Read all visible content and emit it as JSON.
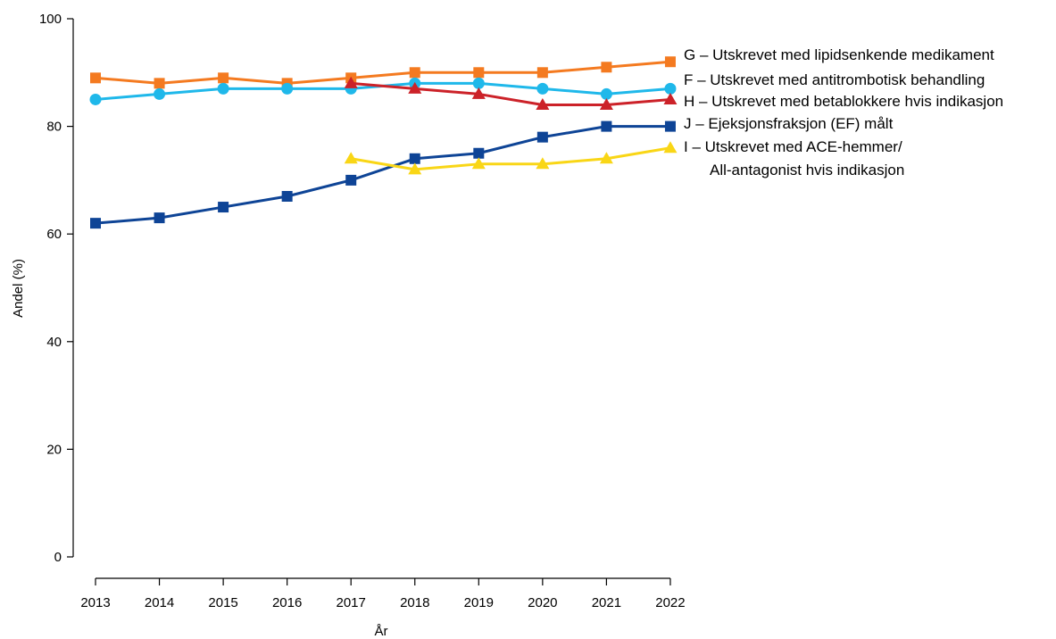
{
  "chart_data": {
    "type": "line",
    "title": "",
    "xlabel": "År",
    "ylabel": "Andel (%)",
    "ylim": [
      0,
      100
    ],
    "yticks": [
      0,
      20,
      40,
      60,
      80,
      100
    ],
    "x": [
      "2013",
      "2014",
      "2015",
      "2016",
      "2017",
      "2018",
      "2019",
      "2020",
      "2021",
      "2022"
    ],
    "grid": false,
    "legend_placement": "right",
    "series": [
      {
        "key": "G",
        "name": "G – Utskrevet med lipidsenkende medikament",
        "color": "#F47A20",
        "marker": "square",
        "values": [
          89,
          88,
          89,
          88,
          89,
          90,
          90,
          90,
          91,
          92
        ]
      },
      {
        "key": "F",
        "name": "F – Utskrevet med antitrombotisk behandling",
        "color": "#1FB8EA",
        "marker": "circle",
        "values": [
          85,
          86,
          87,
          87,
          87,
          88,
          88,
          87,
          86,
          87
        ]
      },
      {
        "key": "H",
        "name": "H – Utskrevet med betablokkere hvis indikasjon",
        "color": "#CC2229",
        "marker": "triangle",
        "values": [
          null,
          null,
          null,
          null,
          88,
          87,
          86,
          84,
          84,
          85
        ]
      },
      {
        "key": "J",
        "name": "J – Ejeksjonsfraksjon (EF) målt",
        "color": "#0E4496",
        "marker": "square",
        "values": [
          62,
          63,
          65,
          67,
          70,
          74,
          75,
          78,
          80,
          80
        ]
      },
      {
        "key": "I",
        "name": "I – Utskrevet med ACE-hemmer/",
        "name_line2": "All-antagonist hvis indikasjon",
        "color": "#F9D616",
        "marker": "triangle",
        "values": [
          null,
          null,
          null,
          null,
          74,
          72,
          73,
          73,
          74,
          76
        ]
      }
    ]
  }
}
